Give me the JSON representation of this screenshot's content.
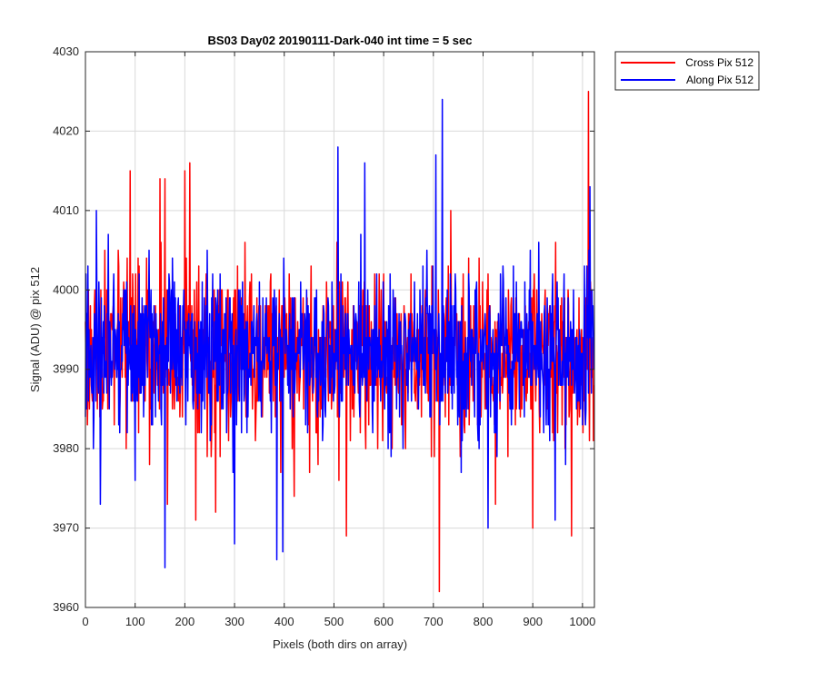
{
  "chart_data": {
    "type": "line",
    "title": "BS03 Day02 20190111-Dark-040 int time = 5 sec",
    "xlabel": "Pixels (both dirs on array)",
    "ylabel": "Signal (ADU) @ pix 512",
    "xlim": [
      0,
      1024
    ],
    "ylim": [
      3960,
      4030
    ],
    "xticks": [
      0,
      100,
      200,
      300,
      400,
      500,
      600,
      700,
      800,
      900,
      1000
    ],
    "yticks": [
      3960,
      3970,
      3980,
      3990,
      4000,
      4010,
      4020,
      4030
    ],
    "grid": true,
    "legend_position": "outside-top-right",
    "series": [
      {
        "name": "Cross Pix 512",
        "color": "#ff0000",
        "mean": 3992,
        "std": 6.5,
        "seed": 17,
        "points": [
          {
            "x": 90,
            "y": 4015
          },
          {
            "x": 150,
            "y": 4014
          },
          {
            "x": 160,
            "y": 4014
          },
          {
            "x": 200,
            "y": 4015
          },
          {
            "x": 210,
            "y": 4016
          },
          {
            "x": 165,
            "y": 3973
          },
          {
            "x": 222,
            "y": 3971
          },
          {
            "x": 262,
            "y": 3972
          },
          {
            "x": 420,
            "y": 3974
          },
          {
            "x": 525,
            "y": 3969
          },
          {
            "x": 712,
            "y": 3962
          },
          {
            "x": 735,
            "y": 4010
          },
          {
            "x": 825,
            "y": 3973
          },
          {
            "x": 900,
            "y": 3970
          },
          {
            "x": 978,
            "y": 3969
          },
          {
            "x": 1012,
            "y": 4025
          }
        ]
      },
      {
        "name": "Along Pix 512",
        "color": "#0000ff",
        "mean": 3992,
        "std": 6.5,
        "seed": 91,
        "points": [
          {
            "x": 22,
            "y": 4010
          },
          {
            "x": 30,
            "y": 3973
          },
          {
            "x": 135,
            "y": 3983
          },
          {
            "x": 160,
            "y": 3965
          },
          {
            "x": 300,
            "y": 3968
          },
          {
            "x": 385,
            "y": 3966
          },
          {
            "x": 397,
            "y": 3967
          },
          {
            "x": 508,
            "y": 4018
          },
          {
            "x": 562,
            "y": 4016
          },
          {
            "x": 705,
            "y": 4017
          },
          {
            "x": 718,
            "y": 4024
          },
          {
            "x": 810,
            "y": 3970
          },
          {
            "x": 945,
            "y": 3971
          },
          {
            "x": 1015,
            "y": 4013
          }
        ]
      }
    ]
  }
}
